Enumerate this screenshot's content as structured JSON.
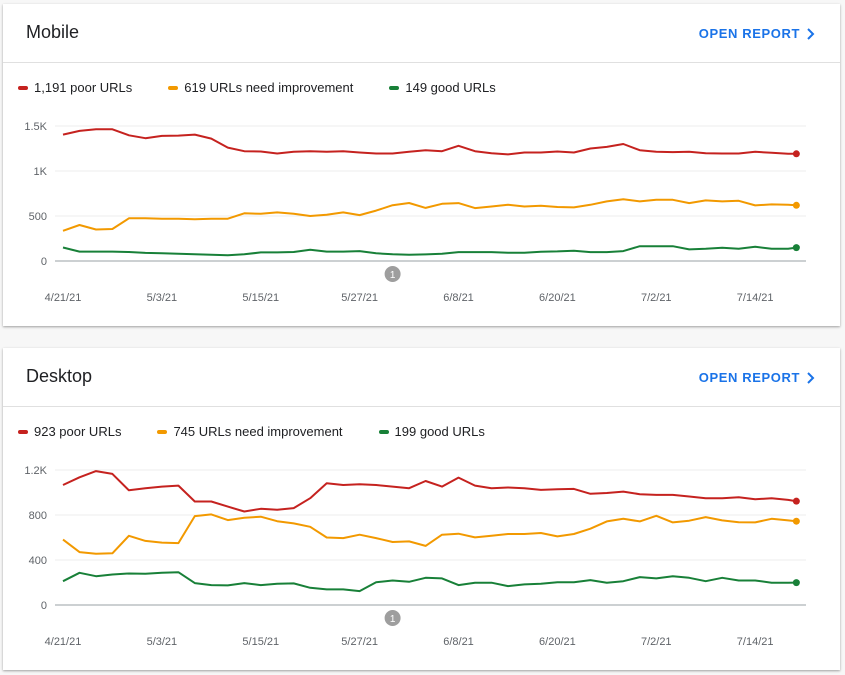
{
  "colors": {
    "poor": "#c5221f",
    "needs_improvement": "#f29900",
    "good": "#188038",
    "accent": "#1a73e8"
  },
  "cards": [
    {
      "title": "Mobile",
      "open_report_label": "OPEN REPORT",
      "legend": [
        "1,191 poor URLs",
        "619 URLs need improvement",
        "149 good URLs"
      ]
    },
    {
      "title": "Desktop",
      "open_report_label": "OPEN REPORT",
      "legend": [
        "923 poor URLs",
        "745 URLs need improvement",
        "199 good URLs"
      ]
    }
  ],
  "chart_data": [
    {
      "type": "line",
      "title": "Mobile",
      "ylim": [
        0,
        1500
      ],
      "yticks": [
        0,
        500,
        1000,
        1500
      ],
      "ytick_labels": [
        "0",
        "500",
        "1K",
        "1.5K"
      ],
      "xtick_labels": [
        "4/21/21",
        "5/3/21",
        "5/15/21",
        "5/27/21",
        "6/8/21",
        "6/20/21",
        "7/2/21",
        "7/14/21"
      ],
      "grid": true,
      "legend_position": "top-left",
      "annotation": {
        "label": "1",
        "date": "5/31/21"
      },
      "x": [
        "4/21/21",
        "4/23/21",
        "4/25/21",
        "4/27/21",
        "4/29/21",
        "5/1/21",
        "5/3/21",
        "5/5/21",
        "5/7/21",
        "5/9/21",
        "5/11/21",
        "5/13/21",
        "5/15/21",
        "5/17/21",
        "5/19/21",
        "5/21/21",
        "5/23/21",
        "5/25/21",
        "5/27/21",
        "5/29/21",
        "5/31/21",
        "6/2/21",
        "6/4/21",
        "6/6/21",
        "6/8/21",
        "6/10/21",
        "6/12/21",
        "6/14/21",
        "6/16/21",
        "6/18/21",
        "6/20/21",
        "6/22/21",
        "6/24/21",
        "6/26/21",
        "6/28/21",
        "6/30/21",
        "7/2/21",
        "7/4/21",
        "7/6/21",
        "7/8/21",
        "7/10/21",
        "7/12/21",
        "7/14/21",
        "7/16/21",
        "7/18/21",
        "7/19/21"
      ],
      "series": [
        {
          "name": "1,191 poor URLs",
          "color": "#c5221f",
          "values": [
            1404,
            1445,
            1463,
            1463,
            1397,
            1364,
            1390,
            1393,
            1404,
            1360,
            1260,
            1220,
            1217,
            1195,
            1213,
            1220,
            1213,
            1220,
            1205,
            1195,
            1195,
            1213,
            1230,
            1220,
            1280,
            1220,
            1198,
            1184,
            1205,
            1205,
            1217,
            1205,
            1250,
            1268,
            1300,
            1231,
            1213,
            1210,
            1213,
            1198,
            1195,
            1195,
            1213,
            1202,
            1191,
            1191
          ]
        },
        {
          "name": "619 URLs need improvement",
          "color": "#f29900",
          "values": [
            335,
            400,
            350,
            355,
            475,
            475,
            470,
            470,
            465,
            470,
            470,
            530,
            525,
            540,
            525,
            500,
            515,
            540,
            510,
            560,
            620,
            645,
            590,
            636,
            643,
            588,
            606,
            625,
            606,
            614,
            600,
            596,
            625,
            662,
            687,
            662,
            680,
            680,
            643,
            673,
            662,
            669,
            618,
            629,
            625,
            619
          ]
        },
        {
          "name": "149 good URLs",
          "color": "#188038",
          "values": [
            150,
            105,
            105,
            105,
            100,
            90,
            85,
            80,
            75,
            70,
            65,
            75,
            95,
            95,
            100,
            125,
            105,
            105,
            110,
            85,
            75,
            70,
            73,
            80,
            99,
            99,
            99,
            92,
            92,
            103,
            107,
            114,
            99,
            99,
            110,
            165,
            165,
            165,
            129,
            136,
            147,
            136,
            158,
            136,
            136,
            149
          ]
        }
      ]
    },
    {
      "type": "line",
      "title": "Desktop",
      "ylim": [
        0,
        1200
      ],
      "yticks": [
        0,
        400,
        800,
        1200
      ],
      "ytick_labels": [
        "0",
        "400",
        "800",
        "1.2K"
      ],
      "xtick_labels": [
        "4/21/21",
        "5/3/21",
        "5/15/21",
        "5/27/21",
        "6/8/21",
        "6/20/21",
        "7/2/21",
        "7/14/21"
      ],
      "grid": true,
      "legend_position": "top-left",
      "annotation": {
        "label": "1",
        "date": "5/31/21"
      },
      "x": [
        "4/21/21",
        "4/23/21",
        "4/25/21",
        "4/27/21",
        "4/29/21",
        "5/1/21",
        "5/3/21",
        "5/5/21",
        "5/7/21",
        "5/9/21",
        "5/11/21",
        "5/13/21",
        "5/15/21",
        "5/17/21",
        "5/19/21",
        "5/21/21",
        "5/23/21",
        "5/25/21",
        "5/27/21",
        "5/29/21",
        "5/31/21",
        "6/2/21",
        "6/4/21",
        "6/6/21",
        "6/8/21",
        "6/10/21",
        "6/12/21",
        "6/14/21",
        "6/16/21",
        "6/18/21",
        "6/20/21",
        "6/22/21",
        "6/24/21",
        "6/26/21",
        "6/28/21",
        "6/30/21",
        "7/2/21",
        "7/4/21",
        "7/6/21",
        "7/8/21",
        "7/10/21",
        "7/12/21",
        "7/14/21",
        "7/16/21",
        "7/18/21",
        "7/19/21"
      ],
      "series": [
        {
          "name": "923 poor URLs",
          "color": "#c5221f",
          "values": [
            1067,
            1135,
            1190,
            1165,
            1020,
            1038,
            1052,
            1061,
            920,
            920,
            875,
            831,
            855,
            846,
            861,
            949,
            1082,
            1067,
            1073,
            1067,
            1052,
            1038,
            1102,
            1052,
            1132,
            1061,
            1038,
            1044,
            1038,
            1023,
            1029,
            1032,
            988,
            996,
            1008,
            985,
            979,
            979,
            964,
            949,
            949,
            958,
            940,
            949,
            934,
            923
          ]
        },
        {
          "name": "745 URLs need improvement",
          "color": "#f29900",
          "values": [
            581,
            470,
            455,
            460,
            615,
            570,
            555,
            550,
            790,
            805,
            755,
            775,
            785,
            745,
            725,
            695,
            600,
            595,
            625,
            595,
            560,
            565,
            525,
            625,
            634,
            601,
            616,
            631,
            631,
            640,
            610,
            631,
            678,
            743,
            766,
            743,
            793,
            734,
            749,
            781,
            752,
            735,
            734,
            766,
            752,
            745
          ]
        },
        {
          "name": "199 good URLs",
          "color": "#188038",
          "values": [
            212,
            286,
            256,
            271,
            280,
            277,
            286,
            292,
            195,
            177,
            174,
            195,
            177,
            189,
            192,
            153,
            139,
            139,
            124,
            203,
            218,
            206,
            242,
            236,
            177,
            198,
            198,
            168,
            183,
            189,
            203,
            203,
            221,
            198,
            212,
            248,
            236,
            256,
            242,
            212,
            242,
            218,
            218,
            198,
            198,
            199
          ]
        }
      ]
    }
  ]
}
